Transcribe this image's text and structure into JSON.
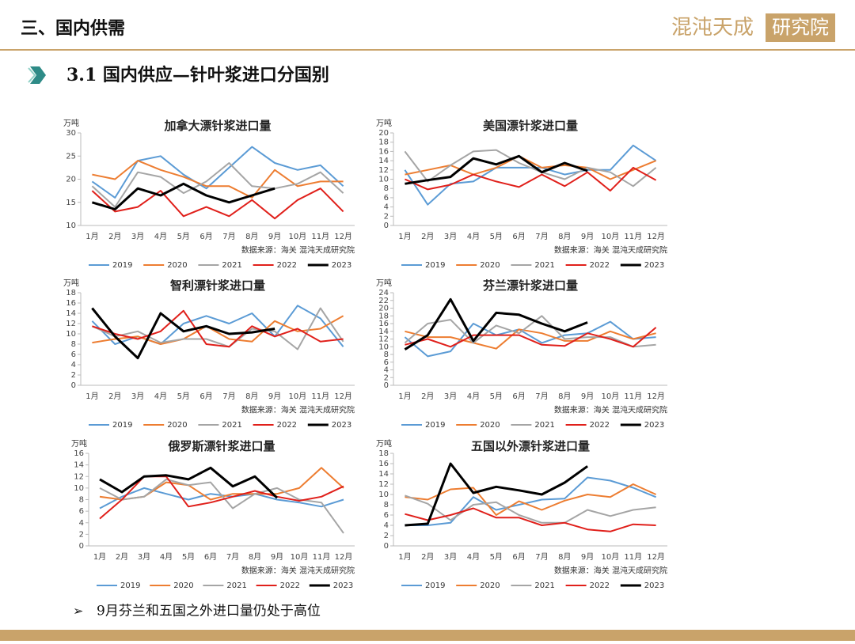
{
  "header": {
    "section": "三、国内供需",
    "subtitle": "3.1 国内供应—针叶浆进口分国别",
    "logo": {
      "name": "混沌天成",
      "suffix": "研究院"
    },
    "note_bullet": "➢",
    "note": "9月芬兰和五国之外进口量仍处于高位"
  },
  "chart_data": [
    {
      "type": "line",
      "title": "加拿大漂针浆进口量",
      "y_unit": "万吨",
      "source": "数据来源：海关 混沌天成研究院",
      "categories": [
        "1月",
        "2月",
        "3月",
        "4月",
        "5月",
        "6月",
        "7月",
        "8月",
        "9月",
        "10月",
        "11月",
        "12月"
      ],
      "ylim": [
        10,
        30
      ],
      "yticks": [
        10,
        15,
        20,
        25,
        30
      ],
      "series": [
        {
          "name": "2019",
          "color": "#5b9bd5",
          "values": [
            19.5,
            16,
            24,
            25,
            21,
            18,
            22.5,
            27,
            23.5,
            22,
            23,
            18.5
          ]
        },
        {
          "name": "2020",
          "color": "#ed7d31",
          "values": [
            21,
            20,
            24,
            22,
            20.5,
            18.5,
            18.5,
            16,
            22,
            18.5,
            19.5,
            19.5
          ]
        },
        {
          "name": "2021",
          "color": "#a5a5a5",
          "values": [
            18.5,
            14,
            21.5,
            20.5,
            17,
            19.5,
            23.5,
            18.5,
            18,
            19,
            21.5,
            17
          ]
        },
        {
          "name": "2022",
          "color": "#e0201b",
          "values": [
            17.5,
            13,
            14,
            17.5,
            12,
            14,
            12,
            15.5,
            11.5,
            15.5,
            18,
            13
          ]
        },
        {
          "name": "2023",
          "color": "#000000",
          "values": [
            15,
            13.5,
            18,
            16.5,
            19,
            16.5,
            15,
            16.5,
            18,
            null,
            null,
            null
          ]
        }
      ]
    },
    {
      "type": "line",
      "title": "美国漂针浆进口量",
      "y_unit": "万吨",
      "source": "数据来源：海关 混沌天成研究院",
      "categories": [
        "1月",
        "2月",
        "3月",
        "4月",
        "5月",
        "6月",
        "7月",
        "8月",
        "9月",
        "10月",
        "11月",
        "12月"
      ],
      "ylim": [
        0,
        20
      ],
      "yticks": [
        0,
        2,
        4,
        6,
        8,
        10,
        12,
        14,
        16,
        18,
        20
      ],
      "series": [
        {
          "name": "2019",
          "color": "#5b9bd5",
          "values": [
            12,
            4.5,
            9,
            9.5,
            12.5,
            12.5,
            12.5,
            11,
            12,
            12,
            17.3,
            14
          ]
        },
        {
          "name": "2020",
          "color": "#ed7d31",
          "values": [
            11,
            12,
            13,
            11,
            12.5,
            15,
            12.5,
            13,
            12.5,
            10,
            12,
            14
          ]
        },
        {
          "name": "2021",
          "color": "#a5a5a5",
          "values": [
            16,
            9.5,
            13,
            16,
            16.3,
            13.5,
            11.5,
            10,
            12.5,
            11.5,
            8.5,
            12.5
          ]
        },
        {
          "name": "2022",
          "color": "#e0201b",
          "values": [
            10,
            7.8,
            8.8,
            11,
            9.5,
            8.3,
            11,
            8.5,
            11.5,
            7.5,
            12.5,
            9.8
          ]
        },
        {
          "name": "2023",
          "color": "#000000",
          "values": [
            9,
            9.8,
            10.5,
            14.5,
            13.2,
            15,
            11.5,
            13.5,
            11.8,
            null,
            null,
            null
          ]
        }
      ]
    },
    {
      "type": "line",
      "title": "智利漂针浆进口量",
      "y_unit": "万吨",
      "source": "数据来源：海关 混沌天成研究院",
      "categories": [
        "1月",
        "2月",
        "3月",
        "4月",
        "5月",
        "6月",
        "7月",
        "8月",
        "9月",
        "10月",
        "11月",
        "12月"
      ],
      "ylim": [
        0,
        18
      ],
      "yticks": [
        0,
        2,
        4,
        6,
        8,
        10,
        12,
        14,
        16,
        18
      ],
      "series": [
        {
          "name": "2019",
          "color": "#5b9bd5",
          "values": [
            12.5,
            8,
            9.5,
            8,
            12,
            13.5,
            12,
            14,
            9.5,
            15.5,
            13,
            7.5
          ]
        },
        {
          "name": "2020",
          "color": "#ed7d31",
          "values": [
            8.3,
            9,
            9.5,
            8,
            9,
            11.5,
            9,
            8.5,
            12.5,
            10.5,
            11,
            13.5
          ]
        },
        {
          "name": "2021",
          "color": "#a5a5a5",
          "values": [
            11.5,
            9.5,
            10.5,
            8.3,
            9,
            9,
            7.5,
            11,
            10.5,
            7,
            15,
            8.5
          ]
        },
        {
          "name": "2022",
          "color": "#e0201b",
          "values": [
            11.5,
            10,
            9,
            10.5,
            14.5,
            8,
            7.5,
            11.5,
            9.5,
            11,
            8.5,
            9
          ]
        },
        {
          "name": "2023",
          "color": "#000000",
          "values": [
            15,
            9.5,
            5.3,
            14,
            10.5,
            11.5,
            10,
            10.3,
            11,
            null,
            null,
            null
          ]
        }
      ]
    },
    {
      "type": "line",
      "title": "芬兰漂针浆进口量",
      "y_unit": "万吨",
      "source": "数据来源：海关 混沌天成研究院",
      "categories": [
        "1月",
        "2月",
        "3月",
        "4月",
        "5月",
        "6月",
        "7月",
        "8月",
        "9月",
        "10月",
        "11月",
        "12月"
      ],
      "ylim": [
        0,
        24
      ],
      "yticks": [
        0,
        2,
        4,
        6,
        8,
        10,
        12,
        14,
        16,
        18,
        20,
        22,
        24
      ],
      "series": [
        {
          "name": "2019",
          "color": "#5b9bd5",
          "values": [
            12.5,
            7.5,
            8.8,
            16,
            13,
            14.5,
            11,
            13,
            13.5,
            16.5,
            12,
            12.5
          ]
        },
        {
          "name": "2020",
          "color": "#ed7d31",
          "values": [
            14,
            12.5,
            12.5,
            11,
            9.5,
            14.5,
            13.5,
            11.5,
            11.5,
            14,
            12,
            13.5
          ]
        },
        {
          "name": "2021",
          "color": "#a5a5a5",
          "values": [
            11,
            16,
            17,
            11,
            15.5,
            13.5,
            18,
            12,
            12.5,
            12.5,
            10,
            10.5
          ]
        },
        {
          "name": "2022",
          "color": "#e0201b",
          "values": [
            10.5,
            12,
            10,
            13,
            13,
            13,
            10.5,
            10.2,
            13.5,
            12,
            10,
            15
          ]
        },
        {
          "name": "2023",
          "color": "#000000",
          "values": [
            9.3,
            13,
            22.3,
            11.5,
            18.8,
            18.3,
            16,
            14,
            16.3,
            null,
            null,
            null
          ]
        }
      ]
    },
    {
      "type": "line",
      "title": "俄罗斯漂针浆进口量",
      "y_unit": "万吨",
      "source": "数据来源：海关 混沌天成研究院",
      "categories": [
        "1月",
        "2月",
        "3月",
        "4月",
        "5月",
        "6月",
        "7月",
        "8月",
        "9月",
        "10月",
        "11月",
        "12月"
      ],
      "ylim": [
        0,
        16
      ],
      "yticks": [
        0,
        2,
        4,
        6,
        8,
        10,
        12,
        14,
        16
      ],
      "series": [
        {
          "name": "2019",
          "color": "#5b9bd5",
          "values": [
            6.5,
            8.5,
            10,
            9,
            8,
            9,
            8.5,
            9,
            8,
            7.5,
            6.8,
            8
          ]
        },
        {
          "name": "2020",
          "color": "#ed7d31",
          "values": [
            8.5,
            8,
            8.5,
            11,
            10.5,
            8,
            9,
            9,
            9,
            10,
            13.5,
            10
          ]
        },
        {
          "name": "2021",
          "color": "#a5a5a5",
          "values": [
            10,
            8,
            8.5,
            11.5,
            10.5,
            11,
            6.5,
            9,
            10,
            8,
            7.5,
            2.2
          ]
        },
        {
          "name": "2022",
          "color": "#e0201b",
          "values": [
            4.7,
            8,
            12,
            12,
            6.8,
            7.5,
            8.5,
            9.5,
            8.5,
            7.8,
            8.5,
            10.3
          ]
        },
        {
          "name": "2023",
          "color": "#000000",
          "values": [
            11.5,
            9.3,
            12,
            12.2,
            11.5,
            13.5,
            10.3,
            12,
            8.3,
            null,
            null,
            null
          ]
        }
      ]
    },
    {
      "type": "line",
      "title": "五国以外漂针浆进口量",
      "y_unit": "万吨",
      "source": "数据来源：海关 混沌天成研究院",
      "categories": [
        "1月",
        "2月",
        "3月",
        "4月",
        "5月",
        "6月",
        "7月",
        "8月",
        "9月",
        "10月",
        "11月",
        "12月"
      ],
      "ylim": [
        0,
        18
      ],
      "yticks": [
        0,
        2,
        4,
        6,
        8,
        10,
        12,
        14,
        16,
        18
      ],
      "series": [
        {
          "name": "2019",
          "color": "#5b9bd5",
          "values": [
            4,
            4,
            4.5,
            9.5,
            7,
            8,
            9,
            9.2,
            13.3,
            12.7,
            11.3,
            9.5
          ]
        },
        {
          "name": "2020",
          "color": "#ed7d31",
          "values": [
            9.5,
            9,
            11,
            11.3,
            6,
            8.7,
            7,
            8.8,
            10,
            9.5,
            12,
            10
          ]
        },
        {
          "name": "2021",
          "color": "#a5a5a5",
          "values": [
            9.8,
            8.2,
            5,
            8,
            8.5,
            6,
            4.5,
            4.5,
            7,
            5.8,
            7,
            7.5
          ]
        },
        {
          "name": "2022",
          "color": "#e0201b",
          "values": [
            6.2,
            5,
            6,
            7.3,
            5.5,
            5.5,
            4,
            4.5,
            3.2,
            2.8,
            4.2,
            4
          ]
        },
        {
          "name": "2023",
          "color": "#000000",
          "values": [
            4,
            4.3,
            16,
            10.3,
            11.5,
            10.8,
            10,
            12.3,
            15.5,
            null,
            null,
            null
          ]
        }
      ]
    }
  ]
}
